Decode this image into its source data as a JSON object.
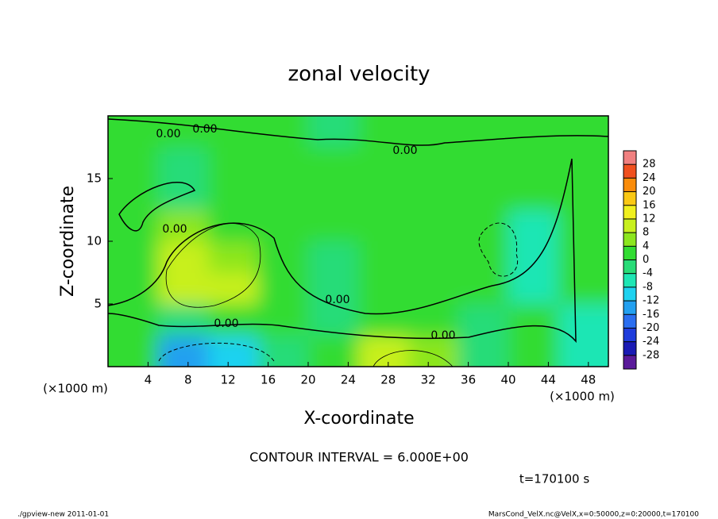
{
  "chart_data": {
    "type": "contour",
    "title": "zonal velocity",
    "xlabel": "X-coordinate",
    "ylabel": "Z-coordinate",
    "xunit": "(×1000 m)",
    "xlim": [
      0,
      50
    ],
    "ylim": [
      0,
      20
    ],
    "xticks": [
      4,
      8,
      12,
      16,
      20,
      24,
      28,
      32,
      36,
      40,
      44,
      48
    ],
    "yticks": [
      5,
      10,
      15
    ],
    "x_edges": [
      0,
      5,
      10,
      15,
      20,
      25,
      30,
      35,
      40,
      45,
      50
    ],
    "y_edges": [
      0,
      2.5,
      5,
      7.5,
      10,
      12.5,
      15,
      17.5,
      20
    ],
    "z": [
      [
        0,
        -14,
        -12,
        -2,
        0,
        8,
        6,
        -2,
        0,
        -6
      ],
      [
        1,
        -2,
        2,
        0,
        -2,
        0,
        0,
        -4,
        2,
        -6
      ],
      [
        2,
        8,
        8,
        2,
        -4,
        0,
        2,
        0,
        -6,
        0
      ],
      [
        2,
        8,
        6,
        0,
        -4,
        2,
        2,
        0,
        -8,
        0
      ],
      [
        0,
        4,
        2,
        2,
        0,
        0,
        0,
        0,
        -6,
        0
      ],
      [
        0,
        -2,
        0,
        2,
        2,
        2,
        0,
        0,
        0,
        0
      ],
      [
        2,
        -2,
        0,
        2,
        2,
        2,
        2,
        2,
        0,
        2
      ],
      [
        0,
        0,
        0,
        0,
        -2,
        0,
        0,
        0,
        0,
        0
      ]
    ],
    "colorbar_lim": [
      -32,
      32
    ],
    "colorbar_ticks": [
      28,
      24,
      20,
      16,
      12,
      8,
      4,
      0,
      -4,
      -8,
      -12,
      -16,
      -20,
      -24,
      -28
    ],
    "colors": [
      "#5a1a9a",
      "#1a1ab4",
      "#1e3cdc",
      "#2a6ef0",
      "#22a0f0",
      "#1ed2f0",
      "#1ee6b4",
      "#28dc78",
      "#32dc32",
      "#8ce61e",
      "#c8f01e",
      "#f0f01e",
      "#fac814",
      "#fa8c0a",
      "#f0501e",
      "#f08080"
    ],
    "contour_labels": [
      "0.00",
      "0.00",
      "0.00",
      "0.00",
      "0.00",
      "0.00",
      "0.00"
    ],
    "contour_interval": "CONTOUR INTERVAL = 6.000E+00",
    "time_label": "t=170100 s",
    "footer_left": "./gpview-new  2011-01-01",
    "footer_right": "MarsCond_VelX.nc@VelX,x=0:50000,z=0:20000,t=170100"
  }
}
